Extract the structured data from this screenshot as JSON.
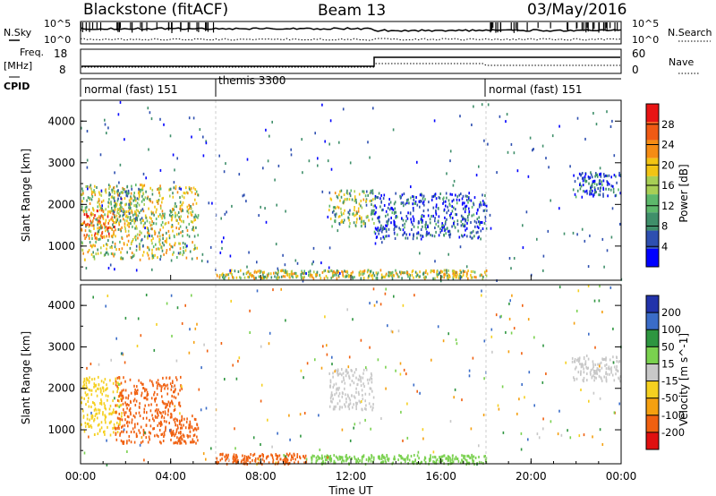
{
  "header": {
    "title_left": "Blackstone (fitACF)",
    "title_center": "Beam 13",
    "title_right": "03/May/2016"
  },
  "summary_panel": {
    "left_label": "N.Sky",
    "right_label": "N.Search",
    "left_ticks": [
      "10^5",
      "10^0"
    ],
    "right_ticks": [
      "10^5",
      "10^0"
    ]
  },
  "freq_panel": {
    "left_label_line1": "Freq.",
    "left_label_line2": "[MHz]",
    "right_label": "Nave",
    "left_ticks": [
      "18",
      "8"
    ],
    "right_ticks": [
      "60",
      "0"
    ]
  },
  "cpid": {
    "label": "CPID",
    "segments": [
      {
        "name": "normal (fast) 151",
        "start": "00:00"
      },
      {
        "name": "themis 3300",
        "start": "06:00"
      },
      {
        "name": "normal (fast) 151",
        "start": "18:00"
      }
    ]
  },
  "x_axis": {
    "label": "Time UT",
    "ticks": [
      "00:00",
      "04:00",
      "08:00",
      "12:00",
      "16:00",
      "20:00",
      "00:00"
    ]
  },
  "colors": {
    "power_scale": [
      "#0000ff",
      "#2e4fb0",
      "#3f8f6a",
      "#5db86b",
      "#a8cf55",
      "#f2c414",
      "#f58c14",
      "#f05a14",
      "#e81414"
    ],
    "velocity_scale": [
      "#2233aa",
      "#3a6cc8",
      "#2e9640",
      "#7ad14f",
      "#c8c8c8",
      "#f5d020",
      "#f5a010",
      "#f06010",
      "#e01010"
    ]
  },
  "chart_data": [
    {
      "type": "heatmap",
      "title": "Power",
      "ylabel": "Slant Range [km]",
      "xlabel": "",
      "colorbar_label": "Power [dB]",
      "colorbar_ticks": [
        "28",
        "24",
        "20",
        "16",
        "12",
        "8",
        "4"
      ],
      "ylim": [
        180,
        4500
      ],
      "y_ticks": [
        1000,
        2000,
        3000,
        4000
      ],
      "xlim": [
        "00:00",
        "24:00"
      ],
      "regions": [
        {
          "t0": 0.0,
          "t1": 5.2,
          "r0": 700,
          "r1": 2500,
          "level": 16
        },
        {
          "t0": 0.1,
          "t1": 1.5,
          "r0": 1200,
          "r1": 1900,
          "level": 24
        },
        {
          "t0": 1.2,
          "t1": 2.8,
          "r0": 1600,
          "r1": 2400,
          "level": 12
        },
        {
          "t0": 6.0,
          "t1": 18.0,
          "r0": 250,
          "r1": 450,
          "level": 16
        },
        {
          "t0": 11.0,
          "t1": 13.0,
          "r0": 1500,
          "r1": 2400,
          "level": 14
        },
        {
          "t0": 13.0,
          "t1": 18.0,
          "r0": 1200,
          "r1": 2300,
          "level": 6
        },
        {
          "t0": 21.8,
          "t1": 24.0,
          "r0": 2200,
          "r1": 2800,
          "level": 6
        }
      ]
    },
    {
      "type": "heatmap",
      "title": "Velocity",
      "ylabel": "Slant Range [km]",
      "xlabel": "Time UT",
      "colorbar_label": "Velocity [m s^-1]",
      "colorbar_ticks": [
        "200",
        "100",
        "50",
        "15",
        "-15",
        "-50",
        "-100",
        "-200"
      ],
      "ylim": [
        180,
        4500
      ],
      "y_ticks": [
        1000,
        2000,
        3000,
        4000
      ],
      "xlim": [
        "00:00",
        "24:00"
      ],
      "regions": [
        {
          "t0": 0.0,
          "t1": 1.8,
          "r0": 900,
          "r1": 2300,
          "level": -40
        },
        {
          "t0": 1.5,
          "t1": 4.5,
          "r0": 700,
          "r1": 2300,
          "level": -150
        },
        {
          "t0": 4.0,
          "t1": 5.2,
          "r0": 700,
          "r1": 1400,
          "level": -120
        },
        {
          "t0": 6.0,
          "t1": 10.0,
          "r0": 200,
          "r1": 450,
          "level": -130
        },
        {
          "t0": 10.0,
          "t1": 18.0,
          "r0": 200,
          "r1": 420,
          "level": 40
        },
        {
          "t0": 11.0,
          "t1": 13.0,
          "r0": 1500,
          "r1": 2500,
          "level": 0
        },
        {
          "t0": 21.8,
          "t1": 24.0,
          "r0": 2200,
          "r1": 2800,
          "level": 0
        }
      ]
    }
  ]
}
